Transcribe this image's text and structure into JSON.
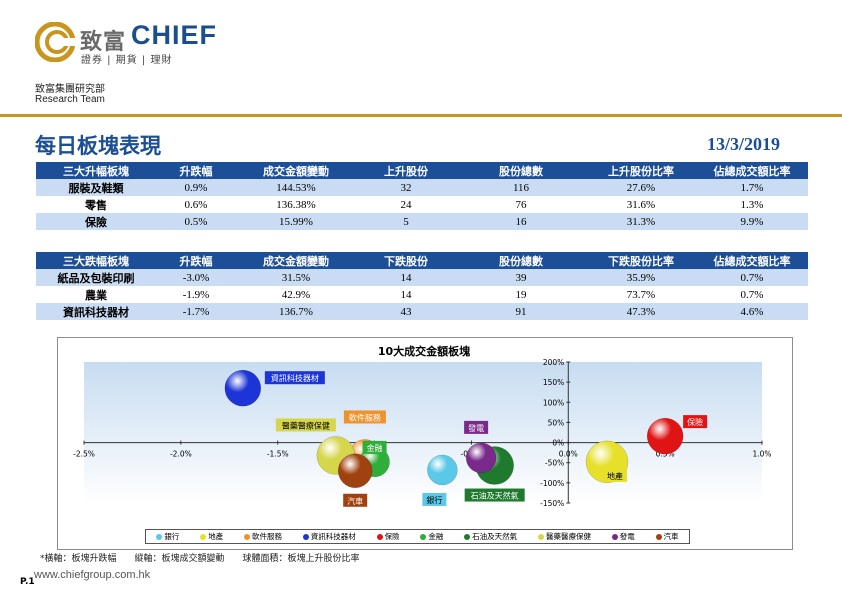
{
  "header": {
    "brand_cn": "致富",
    "brand_en": "CHIEF",
    "brand_sub": "證券 | 期貨 | 理財",
    "dept_cn": "致富集團研究部",
    "dept_en": "Research Team"
  },
  "title": "每日板塊表現",
  "date": "13/3/2019",
  "top_table": {
    "headers": [
      "三大升幅板塊",
      "升跌幅",
      "成交金額變動",
      "上升股份",
      "股份總數",
      "上升股份比率",
      "佔總成交額比率"
    ],
    "rows": [
      [
        "服裝及鞋類",
        "0.9%",
        "144.53%",
        "32",
        "116",
        "27.6%",
        "1.7%"
      ],
      [
        "零售",
        "0.6%",
        "136.38%",
        "24",
        "76",
        "31.6%",
        "1.3%"
      ],
      [
        "保險",
        "0.5%",
        "15.99%",
        "5",
        "16",
        "31.3%",
        "9.9%"
      ]
    ]
  },
  "bottom_table": {
    "headers": [
      "三大跌幅板塊",
      "升跌幅",
      "成交金額變動",
      "下跌股份",
      "股份總數",
      "下跌股份比率",
      "佔總成交額比率"
    ],
    "rows": [
      [
        "紙品及包裝印刷",
        "-3.0%",
        "31.5%",
        "14",
        "39",
        "35.9%",
        "0.7%"
      ],
      [
        "農業",
        "-1.9%",
        "42.9%",
        "14",
        "19",
        "73.7%",
        "0.7%"
      ],
      [
        "資訊科技器材",
        "-1.7%",
        "136.7%",
        "43",
        "91",
        "47.3%",
        "4.6%"
      ]
    ]
  },
  "chart_data": {
    "type": "scatter",
    "title": "10大成交金額板塊",
    "xlim": [
      -2.5,
      1.0
    ],
    "ylim": [
      -150,
      200
    ],
    "x_ticks": [
      "-2.5%",
      "-2.0%",
      "-1.5%",
      "-1.0%",
      "-0.5%",
      "0.0%",
      "0.5%",
      "1.0%"
    ],
    "y_ticks": [
      "200%",
      "150%",
      "100%",
      "50%",
      "0%",
      "-50%",
      "-100%",
      "-150%"
    ],
    "legend_placement": "bottom",
    "series": [
      {
        "name": "銀行",
        "label": "銀行",
        "x": -0.65,
        "y": -68,
        "color": "#5bc8e8",
        "size": 15
      },
      {
        "name": "地產",
        "label": "地產",
        "x": 0.2,
        "y": -48,
        "color": "#e6e02a",
        "size": 21
      },
      {
        "name": "軟件服務",
        "label": "軟件服務",
        "x": -1.05,
        "y": -32,
        "color": "#f0922b",
        "size": 16
      },
      {
        "name": "資訊科技器材",
        "label": "資訊科技器材",
        "x": -1.68,
        "y": 135,
        "color": "#1d35d6",
        "size": 18
      },
      {
        "name": "保險",
        "label": "保險",
        "x": 0.5,
        "y": 16,
        "color": "#e01414",
        "size": 18
      },
      {
        "name": "金融",
        "label": "金融",
        "x": -1.0,
        "y": -48,
        "color": "#2fae3a",
        "size": 15
      },
      {
        "name": "石油及天然氣",
        "label": "石油及天然氣",
        "x": -0.38,
        "y": -57,
        "color": "#1f7a2e",
        "size": 19
      },
      {
        "name": "醫藥醫療保健",
        "label": "醫藥醫療保健",
        "x": -1.2,
        "y": -32,
        "color": "#d5d64a",
        "size": 19
      },
      {
        "name": "發電",
        "label": "發電",
        "x": -0.45,
        "y": -38,
        "color": "#7a2a8a",
        "size": 15
      },
      {
        "name": "汽車",
        "label": "汽車",
        "x": -1.1,
        "y": -70,
        "color": "#a0420f",
        "size": 17
      }
    ]
  },
  "footnote": "*橫軸：板塊升跌幅　　縱軸：板塊成交額變動　　球體面積：板塊上升股份比率",
  "website": "www.chiefgroup.com.hk",
  "page": "P.1"
}
